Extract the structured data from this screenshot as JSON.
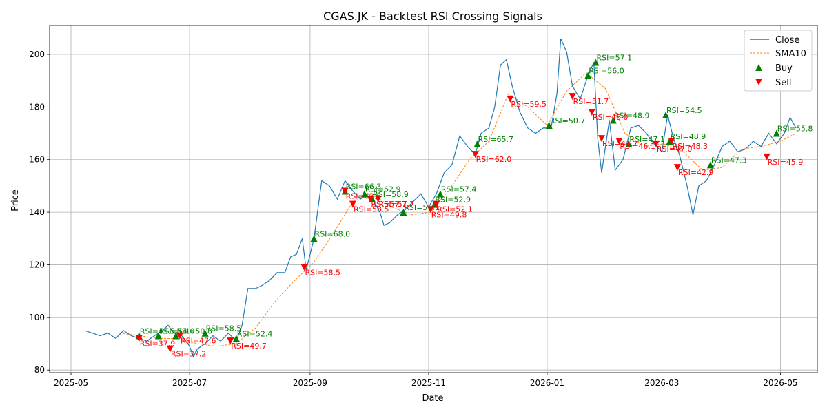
{
  "chart_data": {
    "type": "line",
    "title": "CGAS.JK - Backtest RSI Crossing Signals",
    "xlabel": "Date",
    "ylabel": "Price",
    "xlim": [
      "2025-04-20",
      "2026-05-20"
    ],
    "ylim": [
      79,
      211
    ],
    "x_ticks": [
      {
        "date": "2025-05-01",
        "label": "2025-05"
      },
      {
        "date": "2025-07-01",
        "label": "2025-07"
      },
      {
        "date": "2025-09-01",
        "label": "2025-09"
      },
      {
        "date": "2025-11-01",
        "label": "2025-11"
      },
      {
        "date": "2026-01-01",
        "label": "2026-01"
      },
      {
        "date": "2026-03-01",
        "label": "2026-03"
      },
      {
        "date": "2026-05-01",
        "label": "2026-05"
      }
    ],
    "y_ticks": [
      80,
      100,
      120,
      140,
      160,
      180,
      200
    ],
    "grid": true,
    "legend_position": "top-right",
    "legend": [
      "Close",
      "SMA10",
      "Buy",
      "Sell"
    ],
    "colors": {
      "close": "#1f77b4",
      "sma": "#ff7f0e",
      "buy": "#008000",
      "sell": "#ff0000"
    },
    "close": [
      [
        "2025-05-08",
        95
      ],
      [
        "2025-05-12",
        94
      ],
      [
        "2025-05-16",
        93
      ],
      [
        "2025-05-20",
        94
      ],
      [
        "2025-05-24",
        92
      ],
      [
        "2025-05-28",
        95
      ],
      [
        "2025-06-01",
        93
      ],
      [
        "2025-06-05",
        92
      ],
      [
        "2025-06-09",
        91
      ],
      [
        "2025-06-13",
        93
      ],
      [
        "2025-06-17",
        95
      ],
      [
        "2025-06-20",
        97
      ],
      [
        "2025-06-23",
        94
      ],
      [
        "2025-06-27",
        93
      ],
      [
        "2025-07-01",
        89
      ],
      [
        "2025-07-03",
        85
      ],
      [
        "2025-07-05",
        88
      ],
      [
        "2025-07-09",
        90
      ],
      [
        "2025-07-13",
        93
      ],
      [
        "2025-07-17",
        91
      ],
      [
        "2025-07-21",
        94
      ],
      [
        "2025-07-25",
        91
      ],
      [
        "2025-07-28",
        97
      ],
      [
        "2025-07-31",
        111
      ],
      [
        "2025-08-04",
        111
      ],
      [
        "2025-08-07",
        112
      ],
      [
        "2025-08-11",
        114
      ],
      [
        "2025-08-15",
        117
      ],
      [
        "2025-08-19",
        117
      ],
      [
        "2025-08-22",
        123
      ],
      [
        "2025-08-25",
        124
      ],
      [
        "2025-08-28",
        130
      ],
      [
        "2025-08-30",
        118
      ],
      [
        "2025-09-03",
        130
      ],
      [
        "2025-09-07",
        152
      ],
      [
        "2025-09-11",
        150
      ],
      [
        "2025-09-15",
        145
      ],
      [
        "2025-09-19",
        152
      ],
      [
        "2025-09-23",
        148
      ],
      [
        "2025-09-27",
        145
      ],
      [
        "2025-10-01",
        147
      ],
      [
        "2025-10-03",
        145
      ],
      [
        "2025-10-07",
        140
      ],
      [
        "2025-10-09",
        135
      ],
      [
        "2025-10-12",
        136
      ],
      [
        "2025-10-16",
        139
      ],
      [
        "2025-10-20",
        141
      ],
      [
        "2025-10-24",
        144
      ],
      [
        "2025-10-28",
        147
      ],
      [
        "2025-11-01",
        142
      ],
      [
        "2025-11-05",
        147
      ],
      [
        "2025-11-09",
        155
      ],
      [
        "2025-11-13",
        158
      ],
      [
        "2025-11-17",
        169
      ],
      [
        "2025-11-21",
        165
      ],
      [
        "2025-11-25",
        162
      ],
      [
        "2025-11-28",
        170
      ],
      [
        "2025-12-02",
        172
      ],
      [
        "2025-12-05",
        180
      ],
      [
        "2025-12-08",
        196
      ],
      [
        "2025-12-11",
        198
      ],
      [
        "2025-12-14",
        188
      ],
      [
        "2025-12-18",
        178
      ],
      [
        "2025-12-22",
        172
      ],
      [
        "2025-12-26",
        170
      ],
      [
        "2025-12-30",
        172
      ],
      [
        "2026-01-03",
        172
      ],
      [
        "2026-01-06",
        185
      ],
      [
        "2026-01-08",
        206
      ],
      [
        "2026-01-11",
        201
      ],
      [
        "2026-01-14",
        188
      ],
      [
        "2026-01-18",
        183
      ],
      [
        "2026-01-22",
        192
      ],
      [
        "2026-01-25",
        197
      ],
      [
        "2026-01-27",
        168
      ],
      [
        "2026-01-29",
        155
      ],
      [
        "2026-02-02",
        175
      ],
      [
        "2026-02-05",
        156
      ],
      [
        "2026-02-09",
        160
      ],
      [
        "2026-02-13",
        172
      ],
      [
        "2026-02-17",
        173
      ],
      [
        "2026-02-21",
        170
      ],
      [
        "2026-02-25",
        166
      ],
      [
        "2026-03-01",
        163
      ],
      [
        "2026-03-04",
        177
      ],
      [
        "2026-03-07",
        168
      ],
      [
        "2026-03-10",
        162
      ],
      [
        "2026-03-14",
        150
      ],
      [
        "2026-03-17",
        139
      ],
      [
        "2026-03-20",
        150
      ],
      [
        "2026-03-24",
        152
      ],
      [
        "2026-03-28",
        158
      ],
      [
        "2026-04-01",
        165
      ],
      [
        "2026-04-05",
        167
      ],
      [
        "2026-04-09",
        163
      ],
      [
        "2026-04-13",
        164
      ],
      [
        "2026-04-17",
        167
      ],
      [
        "2026-04-21",
        165
      ],
      [
        "2026-04-25",
        170
      ],
      [
        "2026-04-29",
        166
      ],
      [
        "2026-05-03",
        170
      ],
      [
        "2026-05-06",
        176
      ],
      [
        "2026-05-09",
        172
      ]
    ],
    "sma10": [
      [
        "2025-05-26",
        94
      ],
      [
        "2025-06-05",
        93
      ],
      [
        "2025-06-15",
        92
      ],
      [
        "2025-06-25",
        92
      ],
      [
        "2025-07-05",
        90
      ],
      [
        "2025-07-15",
        89
      ],
      [
        "2025-07-25",
        90
      ],
      [
        "2025-08-04",
        96
      ],
      [
        "2025-08-14",
        106
      ],
      [
        "2025-08-24",
        114
      ],
      [
        "2025-09-03",
        121
      ],
      [
        "2025-09-13",
        132
      ],
      [
        "2025-09-23",
        144
      ],
      [
        "2025-10-03",
        147
      ],
      [
        "2025-10-13",
        142
      ],
      [
        "2025-10-23",
        139
      ],
      [
        "2025-11-02",
        140
      ],
      [
        "2025-11-12",
        149
      ],
      [
        "2025-11-22",
        160
      ],
      [
        "2025-12-02",
        167
      ],
      [
        "2025-12-12",
        185
      ],
      [
        "2025-12-22",
        180
      ],
      [
        "2026-01-01",
        173
      ],
      [
        "2026-01-11",
        186
      ],
      [
        "2026-01-21",
        193
      ],
      [
        "2026-01-31",
        187
      ],
      [
        "2026-02-10",
        170
      ],
      [
        "2026-02-20",
        165
      ],
      [
        "2026-03-02",
        166
      ],
      [
        "2026-03-12",
        163
      ],
      [
        "2026-03-22",
        156
      ],
      [
        "2026-04-01",
        157
      ],
      [
        "2026-04-11",
        164
      ],
      [
        "2026-04-21",
        165
      ],
      [
        "2026-05-01",
        167
      ],
      [
        "2026-05-09",
        170
      ]
    ],
    "buy_signals": [
      {
        "date": "2025-06-05",
        "price": 93,
        "label": "RSI=49.5"
      },
      {
        "date": "2025-06-15",
        "price": 93,
        "label": "RSI=54.0"
      },
      {
        "date": "2025-06-24",
        "price": 93,
        "label": "RSI=50.8"
      },
      {
        "date": "2025-07-09",
        "price": 94,
        "label": "RSI=58.5"
      },
      {
        "date": "2025-07-25",
        "price": 92,
        "label": "RSI=52.4"
      },
      {
        "date": "2025-09-03",
        "price": 130,
        "label": "RSI=68.0"
      },
      {
        "date": "2025-09-19",
        "price": 148,
        "label": "RSI=66.3"
      },
      {
        "date": "2025-09-29",
        "price": 147,
        "label": "RSI=62.9"
      },
      {
        "date": "2025-10-03",
        "price": 145,
        "label": "RSI=58.9"
      },
      {
        "date": "2025-10-19",
        "price": 140,
        "label": "RSI=57.1"
      },
      {
        "date": "2025-11-04",
        "price": 143,
        "label": "RSI=52.9"
      },
      {
        "date": "2025-11-07",
        "price": 147,
        "label": "RSI=57.4"
      },
      {
        "date": "2025-11-26",
        "price": 166,
        "label": "RSI=65.7"
      },
      {
        "date": "2026-01-02",
        "price": 173,
        "label": "RSI=50.7"
      },
      {
        "date": "2026-01-22",
        "price": 192,
        "label": "RSI=56.0"
      },
      {
        "date": "2026-01-26",
        "price": 197,
        "label": "RSI=57.1"
      },
      {
        "date": "2026-02-04",
        "price": 175,
        "label": "RSI=48.9"
      },
      {
        "date": "2026-02-12",
        "price": 166,
        "label": "RSI=47.1"
      },
      {
        "date": "2026-03-03",
        "price": 177,
        "label": "RSI=54.5"
      },
      {
        "date": "2026-03-05",
        "price": 167,
        "label": "RSI=48.9"
      },
      {
        "date": "2026-03-26",
        "price": 158,
        "label": "RSI=47.3"
      },
      {
        "date": "2026-04-29",
        "price": 170,
        "label": "RSI=55.8"
      }
    ],
    "sell_signals": [
      {
        "date": "2025-06-05",
        "price": 92,
        "label": "RSI=37.9"
      },
      {
        "date": "2025-06-21",
        "price": 88,
        "label": "RSI=37.2"
      },
      {
        "date": "2025-06-26",
        "price": 93,
        "label": "RSI=47.6"
      },
      {
        "date": "2025-07-22",
        "price": 91,
        "label": "RSI=49.7"
      },
      {
        "date": "2025-08-29",
        "price": 119,
        "label": "RSI=58.5"
      },
      {
        "date": "2025-09-19",
        "price": 148,
        "label": "RSI=63.6"
      },
      {
        "date": "2025-09-23",
        "price": 143,
        "label": "RSI=58.5"
      },
      {
        "date": "2025-10-02",
        "price": 145,
        "label": "RSI=57.7"
      },
      {
        "date": "2025-10-06",
        "price": 145,
        "label": "RSI=57.7"
      },
      {
        "date": "2025-11-02",
        "price": 141,
        "label": "RSI=49.8"
      },
      {
        "date": "2025-11-05",
        "price": 143,
        "label": "RSI=52.1"
      },
      {
        "date": "2025-11-25",
        "price": 162,
        "label": "RSI=62.0"
      },
      {
        "date": "2025-12-13",
        "price": 183,
        "label": "RSI=59.5"
      },
      {
        "date": "2026-01-14",
        "price": 184,
        "label": "RSI=51.7"
      },
      {
        "date": "2026-01-24",
        "price": 178,
        "label": "RSI=46.0"
      },
      {
        "date": "2026-01-29",
        "price": 168,
        "label": "RSI=41.7"
      },
      {
        "date": "2026-02-07",
        "price": 167,
        "label": "RSI=46.1"
      },
      {
        "date": "2026-02-26",
        "price": 166,
        "label": "RSI=47.0"
      },
      {
        "date": "2026-03-06",
        "price": 167,
        "label": "RSI=48.3"
      },
      {
        "date": "2026-03-09",
        "price": 157,
        "label": "RSI=42.9"
      },
      {
        "date": "2026-04-24",
        "price": 161,
        "label": "RSI=45.9"
      }
    ]
  }
}
